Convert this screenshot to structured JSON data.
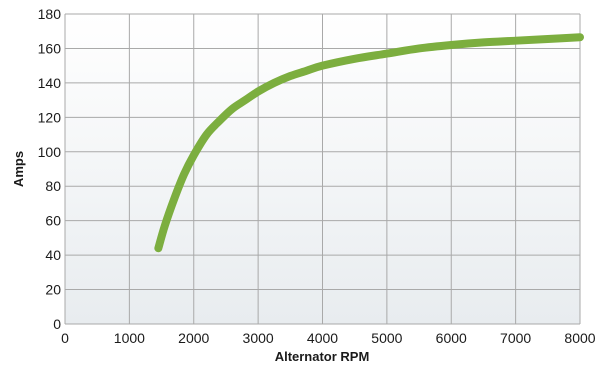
{
  "chart_data": {
    "type": "line",
    "title": "",
    "xlabel": "Alternator RPM",
    "ylabel": "Amps",
    "xlim": [
      0,
      8000
    ],
    "ylim": [
      0,
      180
    ],
    "x_ticks": [
      0,
      1000,
      2000,
      3000,
      4000,
      5000,
      6000,
      7000,
      8000
    ],
    "y_ticks": [
      0,
      20,
      40,
      60,
      80,
      100,
      120,
      140,
      160,
      180
    ],
    "x_tick_labels": [
      "0",
      "1000",
      "2000",
      "3000",
      "4000",
      "5000",
      "6000",
      "7000",
      "8000"
    ],
    "y_tick_labels": [
      "0",
      "20",
      "40",
      "60",
      "80",
      "100",
      "120",
      "140",
      "160",
      "180"
    ],
    "grid": true,
    "legend": "none",
    "series": [
      {
        "color": "#7cae3f",
        "x": [
          1450,
          1550,
          1700,
          1850,
          2000,
          2200,
          2400,
          2600,
          2800,
          3000,
          3250,
          3500,
          3750,
          4000,
          4500,
          5000,
          5500,
          6000,
          6500,
          7000,
          7500,
          8000
        ],
        "y": [
          44,
          57,
          73,
          87,
          98,
          110,
          118,
          125,
          130,
          135,
          140,
          144,
          147,
          150,
          154,
          157,
          160,
          162,
          163.5,
          164.5,
          165.5,
          166.5
        ]
      }
    ]
  }
}
